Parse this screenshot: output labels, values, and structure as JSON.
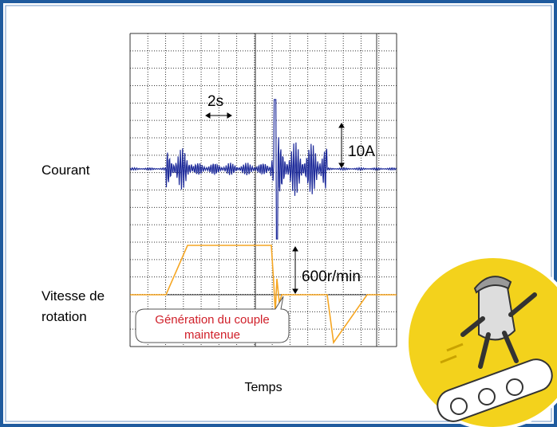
{
  "labels": {
    "time_scale": "2s",
    "current_scale": "10A",
    "current": "Courant",
    "speed_scale": "600r/min",
    "speed_line1": "Vitesse de",
    "speed_line2": "rotation",
    "callout_line1": "Génération du couple",
    "callout_line2": "maintenue",
    "x_axis": "Temps"
  }
}
